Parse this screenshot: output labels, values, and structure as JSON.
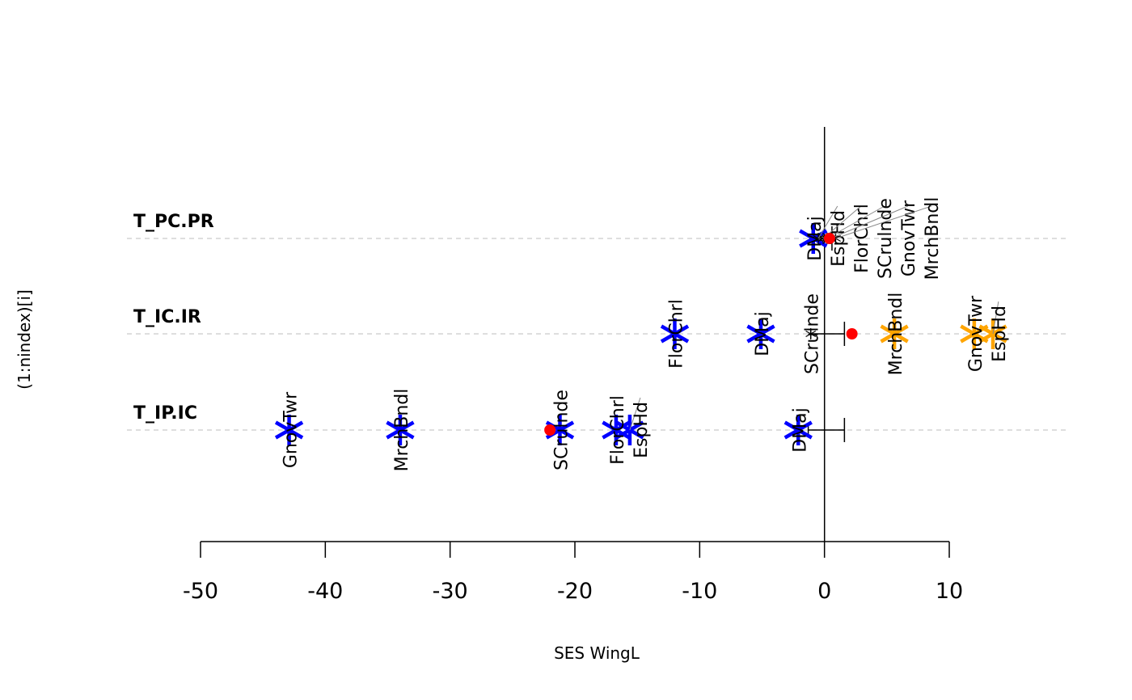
{
  "chart_data": {
    "type": "scatter",
    "title": "",
    "xlabel": "SES WingL",
    "ylabel": "(1:nindex)[i]",
    "xlim": [
      -50,
      10
    ],
    "x_ticks": [
      -50,
      -40,
      -30,
      -20,
      -10,
      0,
      10
    ],
    "y_ticks": [
      1,
      2,
      3
    ],
    "grid": "horizontal dashed at each row",
    "colors": {
      "significant": "#0000FF",
      "positive": "#FFA500",
      "mean": "#FF0000",
      "axis": "#000000",
      "grid": "#D3D3D3"
    },
    "rows": [
      {
        "label": "T_IP.IC",
        "y": 1,
        "mean": -22.0,
        "interval": [
          -1.3,
          1.6
        ],
        "points": [
          {
            "name": "GnovTwr",
            "x": -42.9,
            "color": "#0000FF"
          },
          {
            "name": "MrchBndl",
            "x": -34.0,
            "color": "#0000FF"
          },
          {
            "name": "SCrulnde",
            "x": -21.2,
            "color": "#0000FF"
          },
          {
            "name": "FlorChrl",
            "x": -16.7,
            "color": "#0000FF"
          },
          {
            "name": "EspHd",
            "x": -15.6,
            "color": "#0000FF"
          },
          {
            "name": "DMaj",
            "x": -2.1,
            "color": "#0000FF"
          }
        ]
      },
      {
        "label": "T_IC.IR",
        "y": 2,
        "mean": 2.2,
        "interval": [
          -1.1,
          1.6
        ],
        "points": [
          {
            "name": "FlorChrl",
            "x": -12.0,
            "color": "#0000FF"
          },
          {
            "name": "DMaj",
            "x": -5.1,
            "color": "#0000FF"
          },
          {
            "name": "SCrulnde",
            "x": -1.1,
            "color": "#000000"
          },
          {
            "name": "MrchBndl",
            "x": 5.6,
            "color": "#FFA500"
          },
          {
            "name": "GnovTwr",
            "x": 12.0,
            "color": "#FFA500"
          },
          {
            "name": "EspHd",
            "x": 13.5,
            "color": "#FFA500"
          }
        ]
      },
      {
        "label": "T_PC.PR",
        "y": 3,
        "mean": 0.4,
        "interval": [
          -0.3,
          0.6
        ],
        "points": [
          {
            "name": "DMaj",
            "x": -0.9,
            "color": "#0000FF"
          },
          {
            "name": "EspHd",
            "x": -0.5,
            "color": "#000000"
          },
          {
            "name": "FlorChrl",
            "x": -0.1,
            "color": "#000000"
          },
          {
            "name": "SCrulnde",
            "x": 0.2,
            "color": "#000000"
          },
          {
            "name": "GnovTwr",
            "x": 0.5,
            "color": "#000000"
          },
          {
            "name": "MrchBndl",
            "x": 0.9,
            "color": "#000000"
          }
        ]
      }
    ]
  }
}
